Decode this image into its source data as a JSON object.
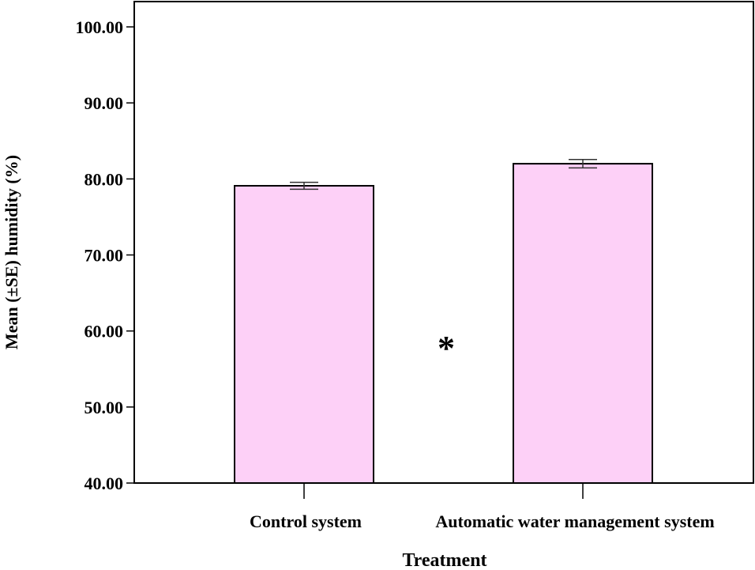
{
  "chart_data": {
    "type": "bar",
    "title": "",
    "xlabel": "Treatment",
    "ylabel": "Mean (±SE) humidity (%)",
    "categories": [
      "Control system",
      "Automatic water management system"
    ],
    "values": [
      79.1,
      82.0
    ],
    "errors": [
      0.45,
      0.55
    ],
    "ylim": [
      40,
      100
    ],
    "yticks": [
      40,
      50,
      60,
      70,
      80,
      90,
      100
    ],
    "ytick_labels": [
      "40.00",
      "50.00",
      "60.00",
      "70.00",
      "80.00",
      "90.00",
      "100.00"
    ],
    "annotation": "*",
    "grid": false,
    "bar_color": "#fdd0f7",
    "edge_color": "#000000"
  }
}
